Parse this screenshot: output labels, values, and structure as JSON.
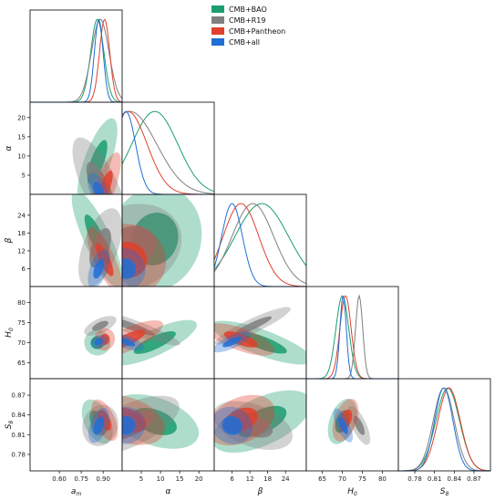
{
  "chart_data": {
    "type": "triangle",
    "params": [
      {
        "key": "am",
        "label": "a",
        "sub": "m",
        "range": [
          0.4,
          1.03
        ],
        "ticks": [
          "0.60",
          "0.75",
          "0.90"
        ]
      },
      {
        "key": "alpha",
        "label": "α",
        "sub": "",
        "range": [
          0,
          24
        ],
        "ticks": [
          "5",
          "10",
          "15",
          "20"
        ]
      },
      {
        "key": "beta",
        "label": "β",
        "sub": "",
        "range": [
          0,
          31
        ],
        "ticks": [
          "6",
          "12",
          "18",
          "24"
        ]
      },
      {
        "key": "H0",
        "label": "H",
        "sub": "0",
        "range": [
          61,
          84
        ],
        "ticks": [
          "65",
          "70",
          "75",
          "80"
        ]
      },
      {
        "key": "S8",
        "label": "S",
        "sub": "8",
        "range": [
          0.755,
          0.895
        ],
        "ticks": [
          "0.78",
          "0.81",
          "0.84",
          "0.87"
        ]
      }
    ],
    "legend": {
      "position": "top-center"
    },
    "series": [
      {
        "name": "CMB+BAO",
        "color": "#1b9e6e",
        "peaks": {
          "am": 0.86,
          "alpha": 8.5,
          "beta": 16,
          "H0": 70.0,
          "S8": 0.83
        },
        "widths": {
          "am": 0.045,
          "alpha": 6,
          "beta": 9,
          "H0": 1.6,
          "S8": 0.018
        }
      },
      {
        "name": "CMB+R19",
        "color": "#7f7f7f",
        "peaks": {
          "am": 0.88,
          "alpha": 2,
          "beta": 13,
          "H0": 74.2,
          "S8": 0.824
        },
        "widths": {
          "am": 0.06,
          "alpha": 7,
          "beta": 7,
          "H0": 0.9,
          "S8": 0.016
        }
      },
      {
        "name": "CMB+Pantheon",
        "color": "#e0402c",
        "peaks": {
          "am": 0.91,
          "alpha": 1.5,
          "beta": 9,
          "H0": 70.8,
          "S8": 0.832
        },
        "widths": {
          "am": 0.035,
          "alpha": 5,
          "beta": 6,
          "H0": 1.4,
          "S8": 0.017
        }
      },
      {
        "name": "CMB+all",
        "color": "#1f6fd6",
        "peaks": {
          "am": 0.87,
          "alpha": 1.0,
          "beta": 6,
          "H0": 70.2,
          "S8": 0.824
        },
        "widths": {
          "am": 0.03,
          "alpha": 2.5,
          "beta": 3.5,
          "H0": 0.8,
          "S8": 0.014
        }
      }
    ]
  }
}
